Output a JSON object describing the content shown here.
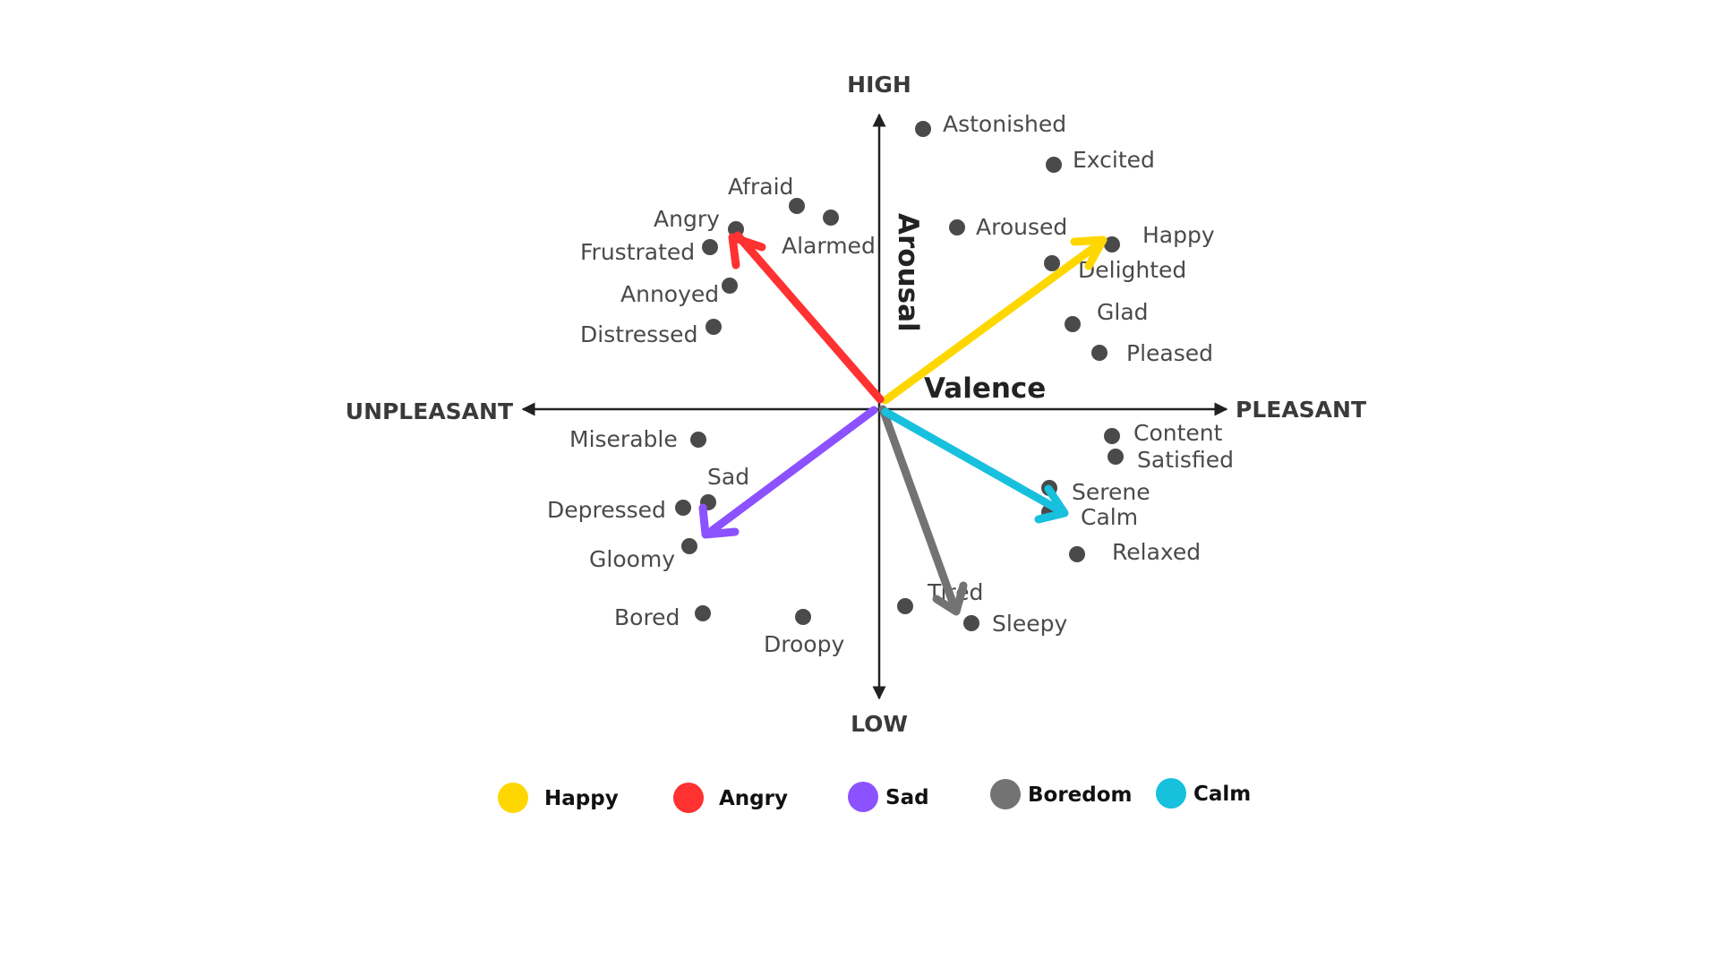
{
  "axes": {
    "high": "HIGH",
    "low": "LOW",
    "unpleasant": "UNPLEASANT",
    "pleasant": "PLEASANT",
    "vertical_title": "Arousal",
    "horizontal_title": "Valence"
  },
  "emotions": [
    "Astonished",
    "Excited",
    "Aroused",
    "Happy",
    "Delighted",
    "Glad",
    "Pleased",
    "Afraid",
    "Angry",
    "Alarmed",
    "Frustrated",
    "Annoyed",
    "Distressed",
    "Miserable",
    "Sad",
    "Depressed",
    "Gloomy",
    "Bored",
    "Droopy",
    "Tired",
    "Sleepy",
    "Content",
    "Satisfied",
    "Serene",
    "Calm",
    "Relaxed"
  ],
  "legend": [
    {
      "name": "Happy",
      "color": "#FFD700"
    },
    {
      "name": "Angry",
      "color": "#FF3131"
    },
    {
      "name": "Sad",
      "color": "#8C52FF"
    },
    {
      "name": "Boredom",
      "color": "#737373"
    },
    {
      "name": "Calm",
      "color": "#17C0DD"
    }
  ]
}
